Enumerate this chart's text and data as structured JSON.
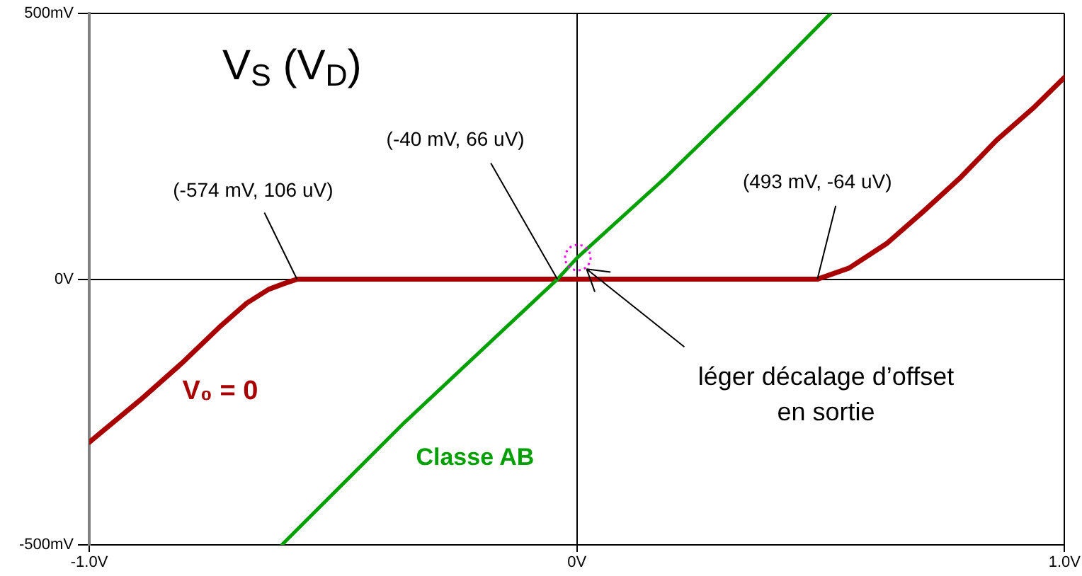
{
  "chart_data": {
    "type": "line",
    "title": "V$_{S}$ (V$_{D}$)",
    "series": [
      {
        "name": "V₀ = 0",
        "color": "#a80000",
        "x": [
          -1,
          -0.895,
          -0.81,
          -0.734,
          -0.677,
          -0.632,
          -0.6,
          -0.574,
          0,
          0.493,
          0.558,
          0.635,
          0.711,
          0.785,
          0.861,
          0.938,
          1
        ],
        "values": [
          -307,
          -227,
          -158,
          -91,
          -45,
          -19,
          -8,
          0,
          0,
          0,
          21,
          67,
          128,
          190,
          262,
          324,
          380
        ]
      },
      {
        "name": "Classe AB",
        "color": "#00a000",
        "x": [
          -0.605,
          -0.354,
          -0.04,
          0,
          0.18,
          0.37,
          0.52
        ],
        "values": [
          -500,
          -270,
          0,
          40,
          190,
          360,
          500
        ]
      }
    ],
    "xlim": [
      -1,
      1
    ],
    "xticks": [
      {
        "value": -1,
        "label": "-1.0V"
      },
      {
        "value": 0,
        "label": "0V"
      },
      {
        "value": 1,
        "label": "1.0V"
      }
    ],
    "ylim": [
      -500,
      500
    ],
    "yticks": [
      {
        "value": -500,
        "label": "-500mV"
      },
      {
        "value": 0,
        "label": "0V"
      },
      {
        "value": 500,
        "label": "500mV"
      }
    ],
    "grid": true,
    "marker": "none",
    "line_style": "solid",
    "annotations": [
      {
        "text": "(-574 mV, 106 uV)",
        "x": -0.574,
        "y": 0.106
      },
      {
        "text": "(-40 mV, 66 uV)",
        "x": -0.04,
        "y": 0.066
      },
      {
        "text": "(493 mV, -64 uV)",
        "x": 0.493,
        "y": -0.064
      },
      {
        "text": "léger décalage d’offset en sortie",
        "x": 0.02,
        "y": 19
      }
    ]
  }
}
